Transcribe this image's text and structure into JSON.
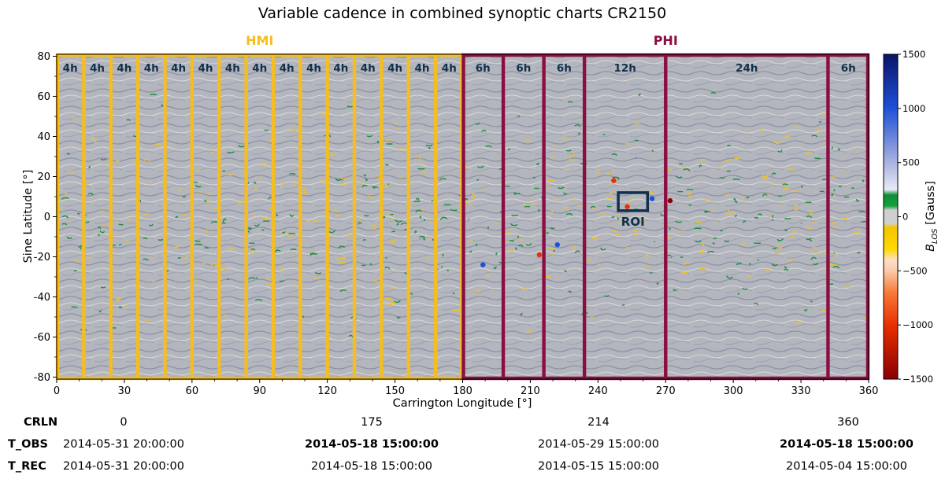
{
  "chart_data": {
    "type": "heatmap",
    "title": "Variable cadence in combined synoptic charts CR2150",
    "xlabel": "Carrington Longitude [°]",
    "ylabel": "Sine Latitude [°]",
    "xlim": [
      0,
      360
    ],
    "ylim": [
      -81,
      81
    ],
    "x_ticks": [
      0,
      30,
      60,
      90,
      120,
      150,
      180,
      210,
      240,
      270,
      300,
      330,
      360
    ],
    "y_ticks": [
      -80,
      -60,
      -40,
      -20,
      0,
      20,
      40,
      60,
      80
    ],
    "instruments": [
      {
        "name": "HMI",
        "color": "#f5bd1f",
        "range": [
          0,
          180
        ]
      },
      {
        "name": "PHI",
        "color": "#8c0d3f",
        "range": [
          180,
          360
        ]
      }
    ],
    "cadence_segments": [
      {
        "instrument": "HMI",
        "start": 0,
        "end": 12,
        "label": "4h"
      },
      {
        "instrument": "HMI",
        "start": 12,
        "end": 24,
        "label": "4h"
      },
      {
        "instrument": "HMI",
        "start": 24,
        "end": 36,
        "label": "4h"
      },
      {
        "instrument": "HMI",
        "start": 36,
        "end": 48,
        "label": "4h"
      },
      {
        "instrument": "HMI",
        "start": 48,
        "end": 60,
        "label": "4h"
      },
      {
        "instrument": "HMI",
        "start": 60,
        "end": 72,
        "label": "4h"
      },
      {
        "instrument": "HMI",
        "start": 72,
        "end": 84,
        "label": "4h"
      },
      {
        "instrument": "HMI",
        "start": 84,
        "end": 96,
        "label": "4h"
      },
      {
        "instrument": "HMI",
        "start": 96,
        "end": 108,
        "label": "4h"
      },
      {
        "instrument": "HMI",
        "start": 108,
        "end": 120,
        "label": "4h"
      },
      {
        "instrument": "HMI",
        "start": 120,
        "end": 132,
        "label": "4h"
      },
      {
        "instrument": "HMI",
        "start": 132,
        "end": 144,
        "label": "4h"
      },
      {
        "instrument": "HMI",
        "start": 144,
        "end": 156,
        "label": "4h"
      },
      {
        "instrument": "HMI",
        "start": 156,
        "end": 168,
        "label": "4h"
      },
      {
        "instrument": "HMI",
        "start": 168,
        "end": 180,
        "label": "4h"
      },
      {
        "instrument": "PHI",
        "start": 180,
        "end": 198,
        "label": "6h"
      },
      {
        "instrument": "PHI",
        "start": 198,
        "end": 216,
        "label": "6h"
      },
      {
        "instrument": "PHI",
        "start": 216,
        "end": 234,
        "label": "6h"
      },
      {
        "instrument": "PHI",
        "start": 234,
        "end": 270,
        "label": "12h"
      },
      {
        "instrument": "PHI",
        "start": 270,
        "end": 342,
        "label": "24h"
      },
      {
        "instrument": "PHI",
        "start": 342,
        "end": 360,
        "label": "6h"
      }
    ],
    "roi": {
      "label": "ROI",
      "x": [
        249,
        262
      ],
      "y": [
        3,
        12
      ]
    },
    "colorbar": {
      "label": "B_LOS [Gauss]",
      "label_main": "B",
      "label_sub": "LOS",
      "label_rest": " [Gauss]",
      "range": [
        -1500,
        1500
      ],
      "ticks": [
        -1500,
        -1000,
        -500,
        0,
        500,
        1000,
        1500
      ],
      "stops": [
        {
          "value": -1500,
          "color": "#8a0000"
        },
        {
          "value": -1000,
          "color": "#e83000"
        },
        {
          "value": -700,
          "color": "#f77a3a"
        },
        {
          "value": -500,
          "color": "#fbc9a8"
        },
        {
          "value": -400,
          "color": "#fde0c8"
        },
        {
          "value": -300,
          "color": "#ffd800"
        },
        {
          "value": -100,
          "color": "#f5c400"
        },
        {
          "value": -60,
          "color": "#cfcfcf"
        },
        {
          "value": 60,
          "color": "#cfcfcf"
        },
        {
          "value": 100,
          "color": "#14a33a"
        },
        {
          "value": 200,
          "color": "#0f8e38"
        },
        {
          "value": 250,
          "color": "#e8eaf6"
        },
        {
          "value": 500,
          "color": "#aab2e0"
        },
        {
          "value": 1000,
          "color": "#1e50d8"
        },
        {
          "value": 1500,
          "color": "#0a1468"
        }
      ]
    }
  },
  "info_table": {
    "rows": [
      {
        "label": "CRLN",
        "values": [
          "0",
          "175",
          "214",
          "360"
        ],
        "bold": [
          false,
          false,
          false,
          false
        ]
      },
      {
        "label": "T_OBS",
        "values": [
          "2014-05-31 20:00:00",
          "2014-05-18 15:00:00",
          "2014-05-29 15:00:00",
          "2014-05-18 15:00:00"
        ],
        "bold": [
          false,
          true,
          false,
          true
        ]
      },
      {
        "label": "T_REC",
        "values": [
          "2014-05-31 20:00:00",
          "2014-05-18 15:00:00",
          "2014-05-15 15:00:00",
          "2014-05-04 15:00:00"
        ],
        "bold": [
          false,
          false,
          false,
          false
        ]
      }
    ]
  }
}
